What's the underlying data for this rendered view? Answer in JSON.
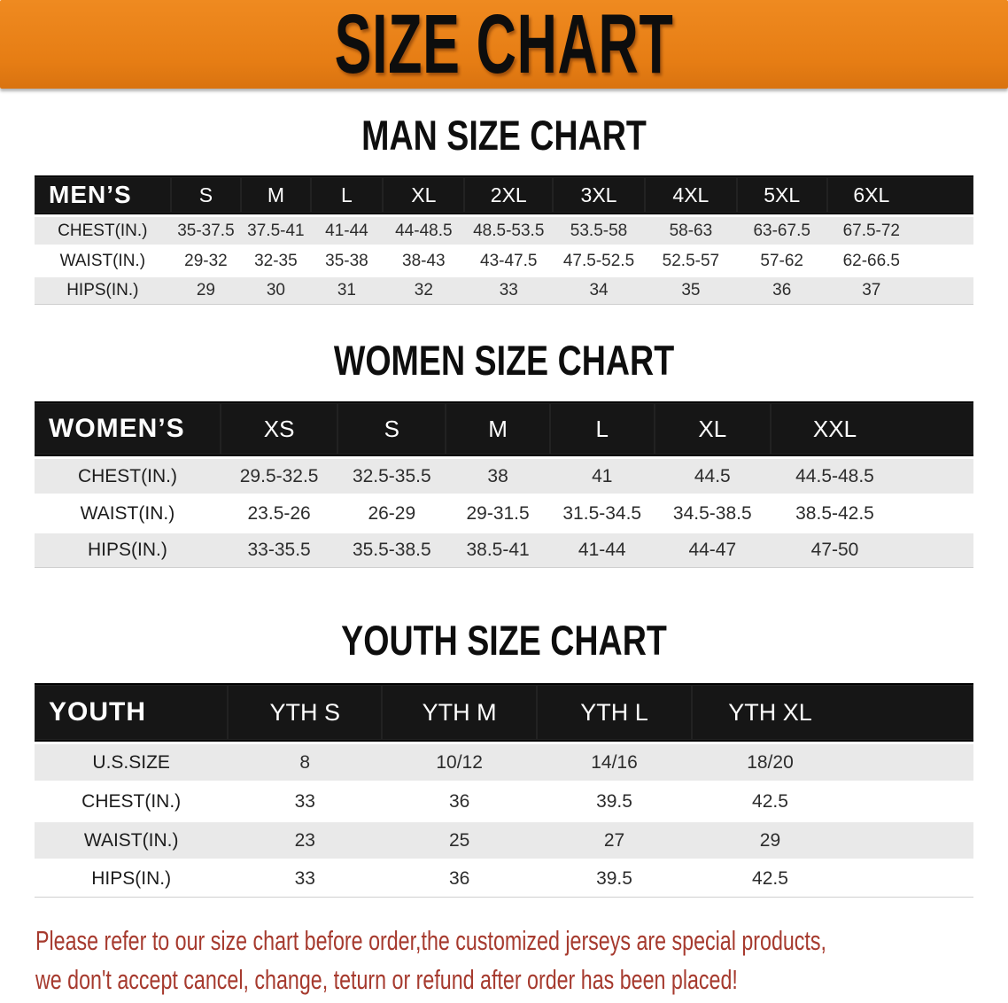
{
  "banner": {
    "title": "SIZE CHART"
  },
  "chart_data": [
    {
      "type": "table",
      "title": "MAN SIZE CHART",
      "header_label": "MEN’S",
      "columns": [
        "S",
        "M",
        "L",
        "XL",
        "2XL",
        "3XL",
        "4XL",
        "5XL",
        "6XL"
      ],
      "rows": [
        {
          "label": "CHEST(IN.)",
          "values": [
            "35-37.5",
            "37.5-41",
            "41-44",
            "44-48.5",
            "48.5-53.5",
            "53.5-58",
            "58-63",
            "63-67.5",
            "67.5-72"
          ]
        },
        {
          "label": "WAIST(IN.)",
          "values": [
            "29-32",
            "32-35",
            "35-38",
            "38-43",
            "43-47.5",
            "47.5-52.5",
            "52.5-57",
            "57-62",
            "62-66.5"
          ]
        },
        {
          "label": "HIPS(IN.)",
          "values": [
            "29",
            "30",
            "31",
            "32",
            "33",
            "34",
            "35",
            "36",
            "37"
          ]
        }
      ]
    },
    {
      "type": "table",
      "title": "WOMEN SIZE CHART",
      "header_label": "WOMEN’S",
      "columns": [
        "XS",
        "S",
        "M",
        "L",
        "XL",
        "XXL"
      ],
      "rows": [
        {
          "label": "CHEST(IN.)",
          "values": [
            "29.5-32.5",
            "32.5-35.5",
            "38",
            "41",
            "44.5",
            "44.5-48.5"
          ]
        },
        {
          "label": "WAIST(IN.)",
          "values": [
            "23.5-26",
            "26-29",
            "29-31.5",
            "31.5-34.5",
            "34.5-38.5",
            "38.5-42.5"
          ]
        },
        {
          "label": "HIPS(IN.)",
          "values": [
            "33-35.5",
            "35.5-38.5",
            "38.5-41",
            "41-44",
            "44-47",
            "47-50"
          ]
        }
      ]
    },
    {
      "type": "table",
      "title": "YOUTH SIZE CHART",
      "header_label": "YOUTH",
      "columns": [
        "YTH S",
        "YTH M",
        "YTH L",
        "YTH XL"
      ],
      "rows": [
        {
          "label": "U.S.SIZE",
          "values": [
            "8",
            "10/12",
            "14/16",
            "18/20"
          ]
        },
        {
          "label": "CHEST(IN.)",
          "values": [
            "33",
            "36",
            "39.5",
            "42.5"
          ]
        },
        {
          "label": "WAIST(IN.)",
          "values": [
            "23",
            "25",
            "27",
            "29"
          ]
        },
        {
          "label": "HIPS(IN.)",
          "values": [
            "33",
            "36",
            "39.5",
            "42.5"
          ]
        }
      ]
    }
  ],
  "footer": {
    "line1": "Please refer to our size chart before order,the customized jerseys are special products,",
    "line2": "we don't accept cancel, change, teturn or refund after order has been placed!"
  },
  "colors": {
    "banner_orange": "#e67d14",
    "header_bar_black": "#161616",
    "row_stripe_gray": "#e9e9e9",
    "disclaimer_red": "#a63a2e",
    "title_black": "#0d0d0d"
  }
}
